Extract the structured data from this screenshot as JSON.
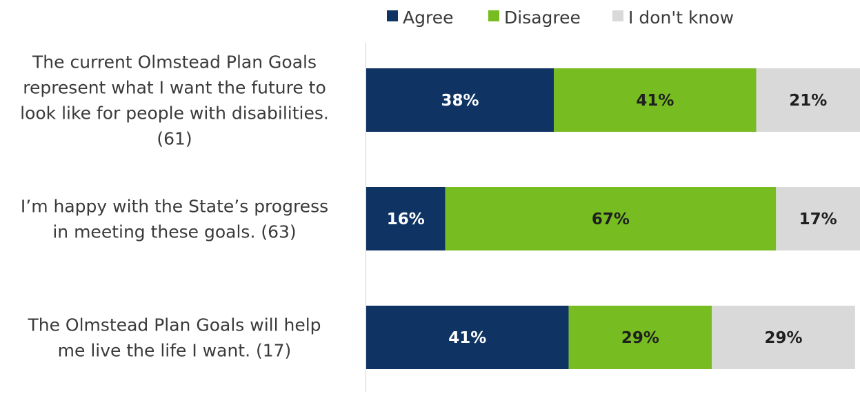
{
  "chart_data": {
    "type": "bar",
    "orientation": "horizontal",
    "stacked": true,
    "percent_stacked": true,
    "legend_position": "top",
    "grid": false,
    "title": "",
    "xlabel": "",
    "ylabel": "",
    "xlim": [
      0,
      100
    ],
    "categories": [
      "The current Olmstead Plan Goals represent what I want the future to look like for people with disabilities. (61)",
      "I’m happy with the State’s progress in meeting these goals. (63)",
      "The Olmstead Plan Goals will help me live the life I want. (17)"
    ],
    "category_lines": [
      [
        "The current Olmstead Plan Goals",
        "represent what I want the future to",
        "look like for people with disabilities.",
        "(61)"
      ],
      [
        "I’m happy with the State’s progress",
        "in meeting these goals. (63)"
      ],
      [
        "The Olmstead Plan Goals will help",
        "me live the life I want. (17)"
      ]
    ],
    "series": [
      {
        "name": "Agree",
        "color": "#0f3463",
        "label_color": "#ffffff",
        "values": [
          38,
          16,
          41
        ],
        "labels": [
          "38%",
          "16%",
          "41%"
        ]
      },
      {
        "name": "Disagree",
        "color": "#77bc20",
        "label_color": "#1f1f1f",
        "values": [
          41,
          67,
          29
        ],
        "labels": [
          "41%",
          "67%",
          "29%"
        ]
      },
      {
        "name": "I don't know",
        "color": "#d9d9d9",
        "label_color": "#1f1f1f",
        "values": [
          21,
          17,
          29
        ],
        "labels": [
          "21%",
          "17%",
          "29%"
        ]
      }
    ]
  }
}
